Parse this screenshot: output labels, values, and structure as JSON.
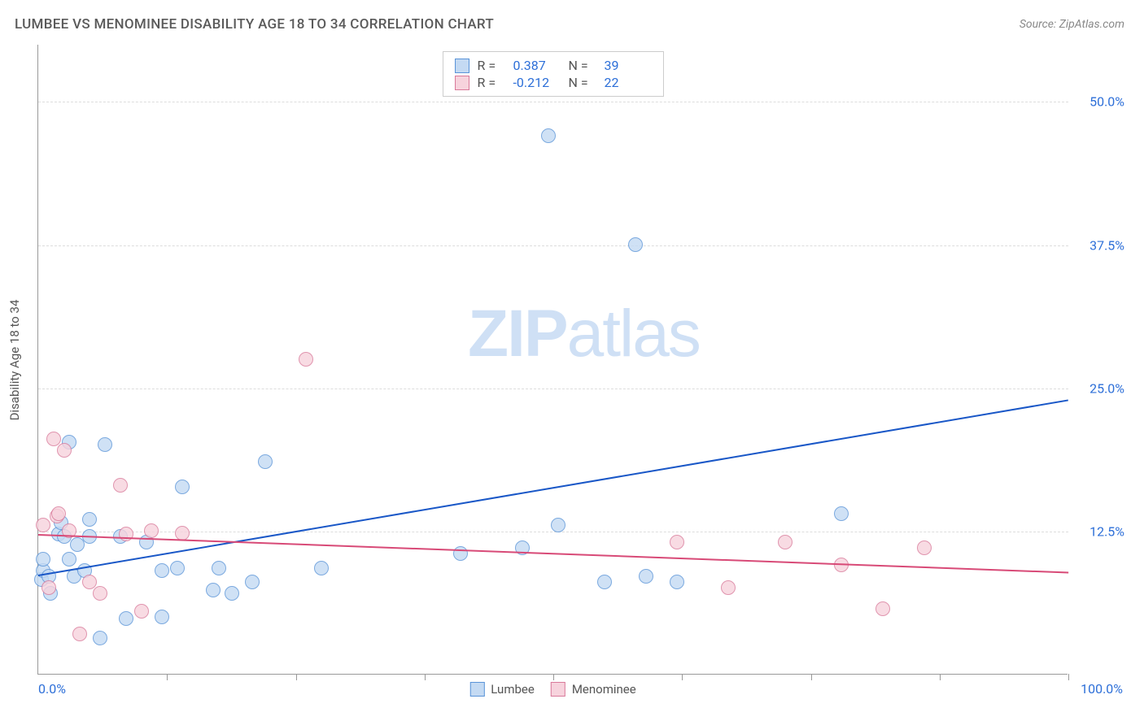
{
  "title": "LUMBEE VS MENOMINEE DISABILITY AGE 18 TO 34 CORRELATION CHART",
  "source": "Source: ZipAtlas.com",
  "ylabel": "Disability Age 18 to 34",
  "watermark_a": "ZIP",
  "watermark_b": "atlas",
  "chart": {
    "type": "scatter",
    "xlim": [
      0,
      100
    ],
    "ylim": [
      0,
      55
    ],
    "x_min_label": "0.0%",
    "x_max_label": "100.0%",
    "y_ticks": [
      12.5,
      25.0,
      37.5,
      50.0
    ],
    "y_tick_labels": [
      "12.5%",
      "25.0%",
      "37.5%",
      "50.0%"
    ],
    "x_ticks": [
      12.5,
      25,
      37.5,
      50,
      62.5,
      75,
      87.5,
      100
    ],
    "grid_color": "#dddddd",
    "axis_color": "#999999",
    "background_color": "#ffffff",
    "series": [
      {
        "name": "Lumbee",
        "fill": "#c4daf3",
        "stroke": "#5a94d8",
        "stroke_opacity": 0.8,
        "marker_radius": 9,
        "trend": {
          "color": "#1957c7",
          "width": 2.5,
          "x1": 0,
          "y1": 8.7,
          "x2": 100,
          "y2": 24.0
        },
        "stats": {
          "R": "0.387",
          "N": "39"
        },
        "points": [
          [
            0.3,
            8.2
          ],
          [
            0.5,
            9.0
          ],
          [
            0.5,
            10.0
          ],
          [
            1.0,
            8.5
          ],
          [
            1.2,
            7.0
          ],
          [
            2.0,
            12.2
          ],
          [
            2.2,
            13.2
          ],
          [
            2.5,
            12.0
          ],
          [
            3.0,
            10.0
          ],
          [
            3.0,
            20.2
          ],
          [
            3.5,
            8.5
          ],
          [
            3.8,
            11.3
          ],
          [
            4.5,
            9.0
          ],
          [
            5.0,
            13.5
          ],
          [
            5.0,
            12.0
          ],
          [
            6.0,
            3.1
          ],
          [
            6.5,
            20.0
          ],
          [
            8.0,
            12.0
          ],
          [
            8.5,
            4.8
          ],
          [
            10.5,
            11.5
          ],
          [
            12.0,
            9.0
          ],
          [
            12.0,
            5.0
          ],
          [
            13.5,
            9.2
          ],
          [
            14.0,
            16.3
          ],
          [
            17.0,
            7.3
          ],
          [
            17.5,
            9.2
          ],
          [
            18.8,
            7.0
          ],
          [
            20.8,
            8.0
          ],
          [
            22.0,
            18.5
          ],
          [
            27.5,
            9.2
          ],
          [
            41.0,
            10.5
          ],
          [
            47.0,
            11.0
          ],
          [
            49.5,
            47.0
          ],
          [
            50.5,
            13.0
          ],
          [
            55.0,
            8.0
          ],
          [
            58.0,
            37.5
          ],
          [
            59.0,
            8.5
          ],
          [
            62.0,
            8.0
          ],
          [
            78.0,
            14.0
          ]
        ]
      },
      {
        "name": "Menominee",
        "fill": "#f7d3dd",
        "stroke": "#d97a9a",
        "stroke_opacity": 0.8,
        "marker_radius": 9,
        "trend": {
          "color": "#d84a77",
          "width": 2.5,
          "x1": 0,
          "y1": 12.3,
          "x2": 100,
          "y2": 9.0
        },
        "stats": {
          "R": "-0.212",
          "N": "22"
        },
        "points": [
          [
            0.5,
            13.0
          ],
          [
            1.0,
            7.5
          ],
          [
            1.5,
            20.5
          ],
          [
            1.8,
            13.8
          ],
          [
            2.0,
            14.0
          ],
          [
            2.5,
            19.5
          ],
          [
            3.0,
            12.5
          ],
          [
            4.0,
            3.5
          ],
          [
            5.0,
            8.0
          ],
          [
            6.0,
            7.0
          ],
          [
            8.0,
            16.5
          ],
          [
            8.5,
            12.2
          ],
          [
            10.0,
            5.5
          ],
          [
            11.0,
            12.5
          ],
          [
            14.0,
            12.3
          ],
          [
            26.0,
            27.5
          ],
          [
            62.0,
            11.5
          ],
          [
            67.0,
            7.5
          ],
          [
            72.5,
            11.5
          ],
          [
            78.0,
            9.5
          ],
          [
            82.0,
            5.7
          ],
          [
            86.0,
            11.0
          ]
        ]
      }
    ]
  },
  "stats_labels": {
    "R": "R =",
    "N": "N ="
  }
}
